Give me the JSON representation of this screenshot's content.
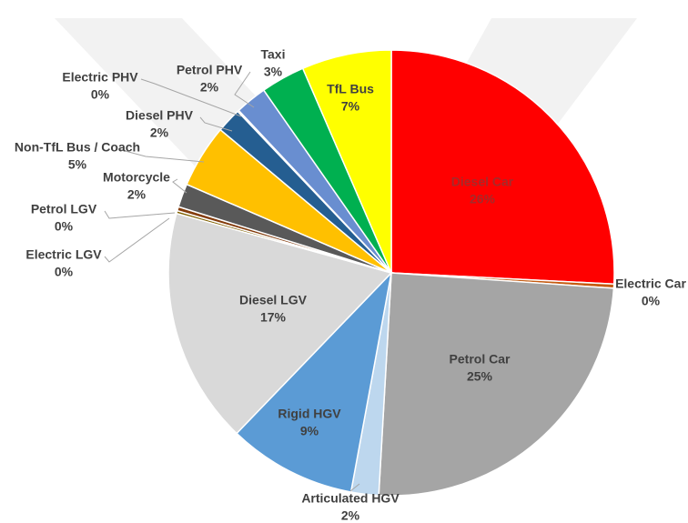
{
  "chart_data": {
    "type": "pie",
    "categories": [
      "Diesel Car",
      "Electric Car",
      "Petrol Car",
      "Articulated HGV",
      "Rigid HGV",
      "Diesel LGV",
      "Electric LGV",
      "Petrol LGV",
      "Motorcycle",
      "Non-TfL Bus / Coach",
      "Diesel PHV",
      "Electric PHV",
      "Petrol PHV",
      "Taxi",
      "TfL Bus"
    ],
    "values": [
      25.8,
      0.3,
      24.8,
      2.0,
      9.3,
      17.1,
      0.2,
      0.3,
      1.7,
      4.6,
      1.8,
      0.1,
      2.3,
      3.2,
      6.5
    ],
    "value_labels": [
      "26%",
      "0%",
      "25%",
      "2%",
      "9%",
      "17%",
      "0%",
      "0%",
      "2%",
      "5%",
      "2%",
      "0%",
      "2%",
      "3%",
      "7%"
    ],
    "colors": [
      "#ff0000",
      "#c55a11",
      "#a5a5a5",
      "#bdd7ee",
      "#5b9bd5",
      "#d9d9d9",
      "#7f6000",
      "#843c0c",
      "#595959",
      "#ffc000",
      "#255e91",
      "#9e480e",
      "#698ed0",
      "#00b050",
      "#ffff00"
    ]
  }
}
